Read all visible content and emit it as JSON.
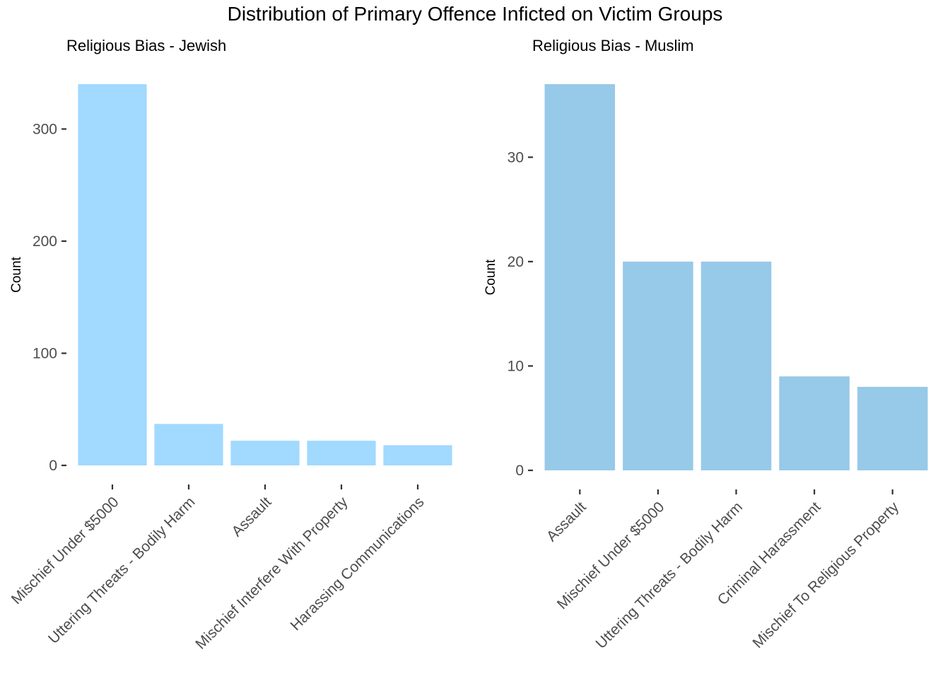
{
  "figure_title": "Distribution of Primary Offence Inficted on Victim Groups",
  "chart_data": [
    {
      "type": "bar",
      "title": "Religious Bias - Jewish",
      "xlabel": "",
      "ylabel": "Count",
      "categories": [
        "Mischief Under $5000",
        "Uttering Threats - Bodily Harm",
        "Assault",
        "Mischief Interfere With Property",
        "Harassing Communications"
      ],
      "values": [
        340,
        37,
        22,
        22,
        18
      ],
      "ylim": [
        0,
        340
      ],
      "yticks": [
        0,
        100,
        200,
        300
      ],
      "bar_color": "#a1d9ff",
      "grid": false
    },
    {
      "type": "bar",
      "title": "Religious Bias - Muslim",
      "xlabel": "",
      "ylabel": "Count",
      "categories": [
        "Assault",
        "Mischief Under $5000",
        "Uttering Threats - Bodily Harm",
        "Criminal Harassment",
        "Mischief To Religious Property"
      ],
      "values": [
        37,
        20,
        20,
        9,
        8
      ],
      "ylim": [
        0,
        37
      ],
      "yticks": [
        0,
        10,
        20,
        30
      ],
      "bar_color": "#97c9e8",
      "grid": false
    }
  ]
}
